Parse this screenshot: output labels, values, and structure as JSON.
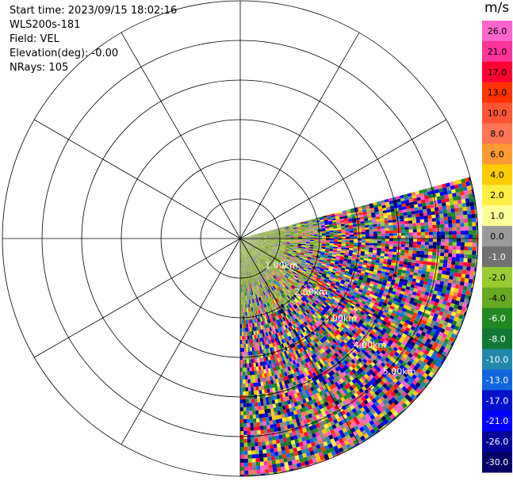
{
  "header": {
    "start_time": "Start time: 2023/09/15 18:02:16",
    "instrument": "WLS200s-181",
    "field": "Field: VEL",
    "elevation": "Elevation(deg): -0.00",
    "nrays": "NRays: 105"
  },
  "chart_data": {
    "type": "polar-ppi",
    "title": "",
    "unit": "m/s",
    "rings_km": [
      1,
      2,
      3,
      4,
      5,
      6
    ],
    "ring_labels": [
      "1.00km",
      "2.00km",
      "3.00km",
      "4.00km",
      "5.00km"
    ],
    "spoke_step_deg": 30,
    "sector_deg": [
      75,
      180
    ],
    "max_range_km": 6,
    "colorbar": {
      "ticks": [
        "26.0",
        "21.0",
        "17.0",
        "13.0",
        "10.0",
        "8.0",
        "6.0",
        "4.0",
        "2.0",
        "1.0",
        "0.0",
        "-1.0",
        "-2.0",
        "-4.0",
        "-6.0",
        "-8.0",
        "-10.0",
        "-13.0",
        "-17.0",
        "-21.0",
        "-26.0",
        "-30.0"
      ],
      "colors": [
        "#ff66cc",
        "#ff3399",
        "#ff0033",
        "#ff3300",
        "#ff5533",
        "#ff7755",
        "#ff9933",
        "#ffcc00",
        "#ffee44",
        "#ffff99",
        "#9a9a9a",
        "#707070",
        "#99cc33",
        "#66aa22",
        "#228822",
        "#117733",
        "#2288aa",
        "#1166dd",
        "#0011cc",
        "#0000ff",
        "#000099",
        "#000066"
      ]
    }
  }
}
